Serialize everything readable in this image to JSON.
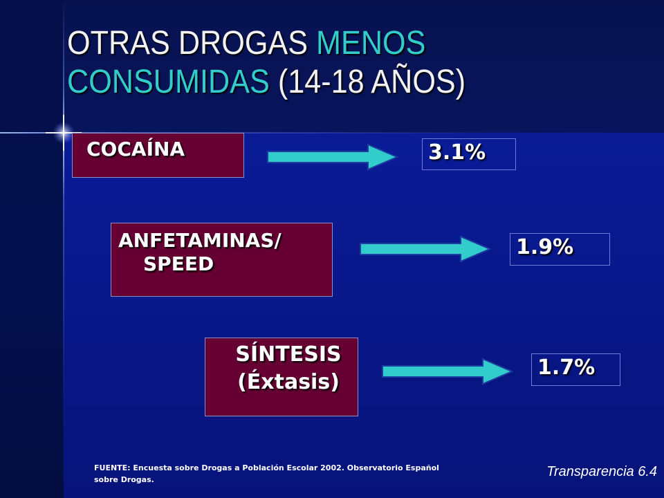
{
  "slide": {
    "title_part1": "OTRAS DROGAS ",
    "title_part2": "MENOS CONSUMIDAS",
    "title_part3": " (14-18 AÑOS)",
    "accent_color": "#33cccc",
    "box_color": "#660033",
    "arrow_color": "#33cccc"
  },
  "rows": [
    {
      "drug_line1": "COCAÍNA",
      "drug_line2": "",
      "value": "3.1%"
    },
    {
      "drug_line1": "ANFETAMINAS/",
      "drug_line2": "SPEED",
      "value": "1.9%"
    },
    {
      "drug_line1": "SÍNTESIS",
      "drug_line2": "(Éxtasis)",
      "value": "1.7%"
    }
  ],
  "footer": {
    "source": "FUENTE: Encuesta sobre Drogas a Población Escolar 2002. Observatorio Español sobre Drogas.",
    "reference": "Transparencia 6.4"
  }
}
